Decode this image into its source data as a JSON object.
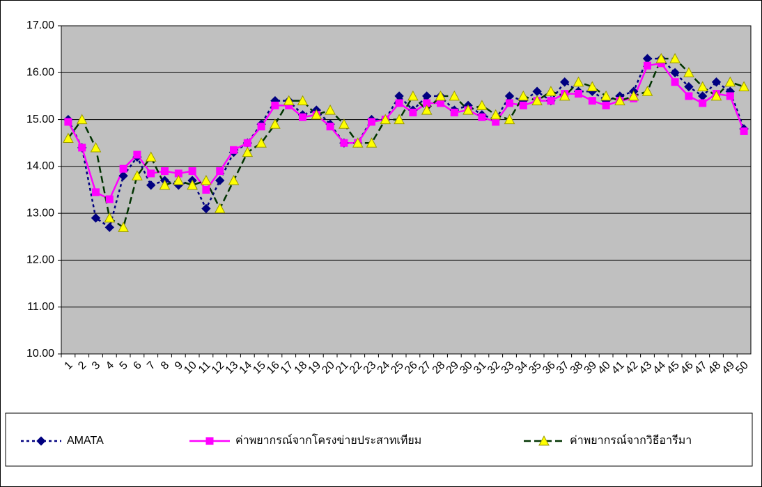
{
  "chart_data": {
    "type": "line",
    "categories": [
      "1",
      "2",
      "3",
      "4",
      "5",
      "6",
      "7",
      "8",
      "9",
      "10",
      "11",
      "12",
      "13",
      "14",
      "15",
      "16",
      "17",
      "18",
      "19",
      "20",
      "21",
      "22",
      "23",
      "24",
      "25",
      "26",
      "27",
      "28",
      "29",
      "30",
      "31",
      "32",
      "33",
      "34",
      "35",
      "36",
      "37",
      "38",
      "39",
      "40",
      "41",
      "42",
      "43",
      "44",
      "45",
      "46",
      "47",
      "48",
      "49",
      "50"
    ],
    "series": [
      {
        "name": "AMATA",
        "color": "#000080",
        "marker": "diamond",
        "dash": "4,4",
        "values": [
          15.0,
          14.4,
          12.9,
          12.7,
          13.8,
          14.2,
          13.6,
          13.7,
          13.6,
          13.7,
          13.1,
          13.7,
          14.3,
          14.5,
          14.9,
          15.4,
          15.4,
          15.1,
          15.2,
          14.9,
          14.5,
          14.5,
          15.0,
          15.0,
          15.5,
          15.2,
          15.5,
          15.5,
          15.2,
          15.3,
          15.1,
          15.0,
          15.5,
          15.4,
          15.6,
          15.4,
          15.8,
          15.6,
          15.6,
          15.4,
          15.5,
          15.6,
          16.3,
          16.3,
          16.0,
          15.7,
          15.5,
          15.8,
          15.6,
          14.8
        ]
      },
      {
        "name": "ค่าพยากรณ์จากโครงข่ายประสาทเทียม",
        "color": "#ff00ff",
        "marker": "square",
        "dash": "none",
        "values": [
          14.95,
          14.4,
          13.45,
          13.3,
          13.95,
          14.25,
          13.85,
          13.9,
          13.85,
          13.9,
          13.5,
          13.9,
          14.35,
          14.5,
          14.85,
          15.3,
          15.3,
          15.05,
          15.1,
          14.85,
          14.5,
          14.5,
          14.95,
          15.0,
          15.35,
          15.15,
          15.35,
          15.35,
          15.15,
          15.2,
          15.05,
          14.95,
          15.35,
          15.3,
          15.4,
          15.4,
          15.55,
          15.55,
          15.4,
          15.3,
          15.4,
          15.45,
          16.15,
          16.2,
          15.8,
          15.5,
          15.35,
          15.55,
          15.5,
          14.75
        ]
      },
      {
        "name": "ค่าพยากรณ์จากวิธีอารีมา",
        "color": "#003300",
        "marker_color": "#ffff00",
        "marker": "triangle",
        "dash": "10,5",
        "values": [
          14.6,
          15.0,
          14.4,
          12.9,
          12.7,
          13.8,
          14.2,
          13.6,
          13.7,
          13.6,
          13.7,
          13.1,
          13.7,
          14.3,
          14.5,
          14.9,
          15.4,
          15.4,
          15.1,
          15.2,
          14.9,
          14.5,
          14.5,
          15.0,
          15.0,
          15.5,
          15.2,
          15.5,
          15.5,
          15.2,
          15.3,
          15.1,
          15.0,
          15.5,
          15.4,
          15.6,
          15.5,
          15.8,
          15.7,
          15.5,
          15.4,
          15.5,
          15.6,
          16.3,
          16.3,
          16.0,
          15.7,
          15.5,
          15.8,
          15.7
        ]
      }
    ],
    "ylim": [
      10,
      17
    ],
    "yticks": [
      {
        "value": 10,
        "label": "10.00"
      },
      {
        "value": 11,
        "label": "11.00"
      },
      {
        "value": 12,
        "label": "12.00"
      },
      {
        "value": 13,
        "label": "13.00"
      },
      {
        "value": 14,
        "label": "14.00"
      },
      {
        "value": 15,
        "label": "15.00"
      },
      {
        "value": 16,
        "label": "16.00"
      },
      {
        "value": 17,
        "label": "17.00"
      }
    ],
    "grid": true,
    "plot_background": "#c0c0c0",
    "legend": "bottom"
  }
}
